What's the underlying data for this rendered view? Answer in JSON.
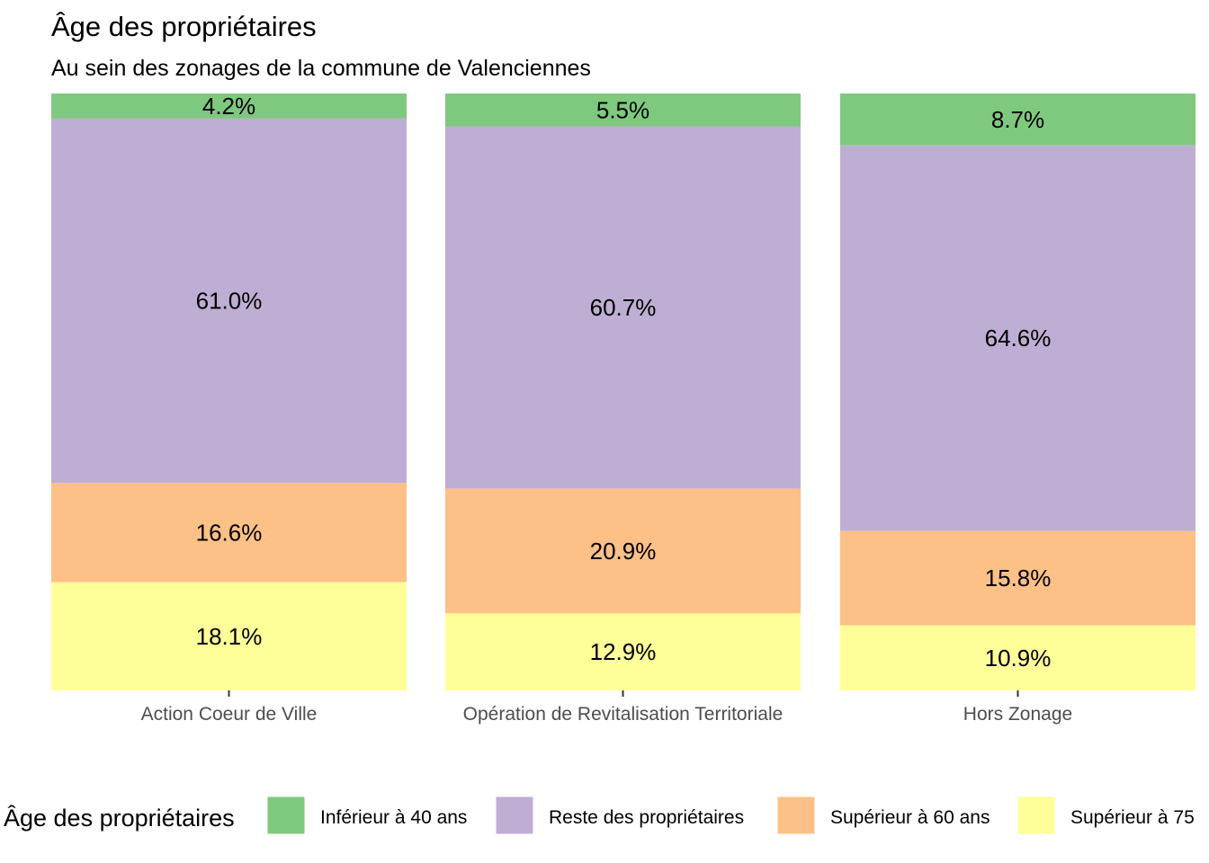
{
  "chart_data": {
    "type": "bar",
    "stacked": true,
    "normalized": true,
    "title": "Âge des propriétaires",
    "subtitle": "Au sein des zonages de la commune de Valenciennes",
    "categories": [
      "Action Coeur de Ville",
      "Opération de Revitalisation Territoriale",
      "Hors Zonage"
    ],
    "series": [
      {
        "name": "Inférieur à 40 ans",
        "color": "#7fc97f",
        "values": [
          4.2,
          5.5,
          8.7
        ],
        "labels": [
          "4.2%",
          "5.5%",
          "8.7%"
        ]
      },
      {
        "name": "Reste des propriétaires",
        "color": "#beaed4",
        "values": [
          61.0,
          60.7,
          64.6
        ],
        "labels": [
          "61.0%",
          "60.7%",
          "64.6%"
        ]
      },
      {
        "name": "Supérieur à 60 ans",
        "color": "#fdc086",
        "values": [
          16.6,
          20.9,
          15.8
        ],
        "labels": [
          "16.6%",
          "20.9%",
          "15.8%"
        ]
      },
      {
        "name": "Supérieur à 75",
        "color": "#ffff99",
        "values": [
          18.1,
          12.9,
          10.9
        ],
        "labels": [
          "18.1%",
          "12.9%",
          "10.9%"
        ]
      }
    ],
    "legend": {
      "title": "Âge des propriétaires",
      "position": "bottom"
    },
    "grid": false
  }
}
